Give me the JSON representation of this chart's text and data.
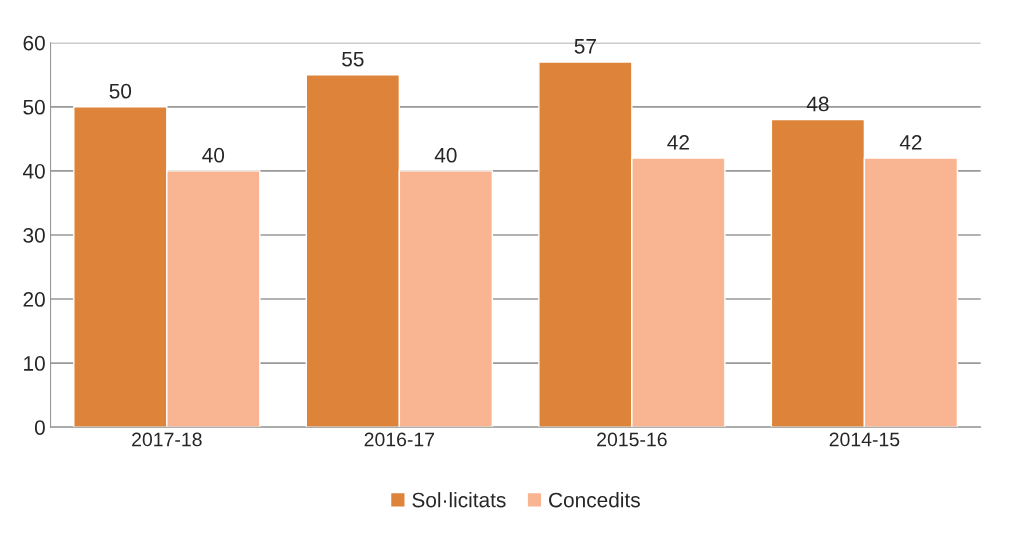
{
  "chart_data": {
    "type": "bar",
    "categories": [
      "2017-18",
      "2016-17",
      "2015-16",
      "2014-15"
    ],
    "series": [
      {
        "name": "Sol·licitats",
        "color": "#dd843a",
        "values": [
          50,
          55,
          57,
          48
        ]
      },
      {
        "name": "Concedits",
        "color": "#f9b591",
        "values": [
          40,
          40,
          42,
          42
        ]
      }
    ],
    "ylim": [
      0,
      60
    ],
    "yticks": [
      0,
      10,
      20,
      30,
      40,
      50,
      60
    ],
    "grid": "y",
    "legend": "bottom",
    "data_labels": true
  }
}
